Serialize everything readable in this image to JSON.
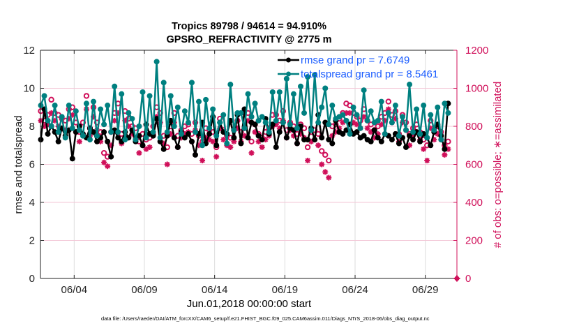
{
  "chart_data": {
    "type": "line",
    "title": "Tropics 89798 / 94614 = 94.910%",
    "subtitle": "GPSRO_REFRACTIVITY @ 2775 m",
    "xlabel": "Jun.01,2018 00:00:00 start",
    "ylabel": "rmse and totalspread",
    "ylabel_right": "# of obs: o=possible; ∗=assimilated",
    "footer": "data file: /Users/raeder/DAI/ATM_forcXX/CAM6_setup/f.e21.FHIST_BGC.f09_025.CAM6assim.011/Diags_NTrS_2018-06/obs_diag_output.nc",
    "x_tick_labels": [
      "06/04",
      "06/09",
      "06/14",
      "06/19",
      "06/24",
      "06/29"
    ],
    "x_tick_days": [
      4,
      9,
      14,
      19,
      24,
      29
    ],
    "xlim_days": [
      1.6,
      31.25
    ],
    "x_start_day": 1.625,
    "x_step_days": 0.25,
    "ylim": [
      0,
      12
    ],
    "y_ticks": [
      0,
      2,
      4,
      6,
      8,
      10,
      12
    ],
    "ylim_right": [
      0,
      1200
    ],
    "y_ticks_right": [
      0,
      200,
      400,
      600,
      800,
      1000,
      1200
    ],
    "grid": true,
    "legend": "top-right",
    "colors": {
      "rmse": "#000000",
      "totalspread": "#008080",
      "obs": "#d0105a",
      "legend_text": "#1a5cff",
      "right_axis": "#d0105a",
      "grid": "#dcdcdc",
      "grid_right": "#f3c6d6"
    },
    "series": [
      {
        "name": "rmse grand pr = 7.6749",
        "axis": "left",
        "values": [
          7.3,
          8.9,
          7.6,
          8.0,
          7.7,
          7.2,
          7.9,
          7.5,
          7.8,
          6.3,
          7.7,
          8.0,
          7.6,
          7.4,
          7.9,
          7.7,
          7.2,
          7.4,
          7.7,
          7.2,
          6.4,
          7.8,
          7.4,
          7.2,
          7.7,
          7.4,
          7.8,
          7.2,
          7.5,
          7.0,
          8.1,
          7.6,
          7.5,
          8.4,
          7.2,
          6.8,
          7.5,
          8.3,
          7.4,
          6.9,
          7.7,
          7.4,
          7.6,
          7.2,
          6.5,
          7.6,
          8.2,
          7.1,
          7.6,
          8.5,
          7.0,
          8.2,
          7.7,
          7.6,
          8.3,
          7.4,
          8.6,
          7.1,
          8.9,
          7.4,
          8.2,
          8.1,
          7.5,
          7.3,
          8.4,
          7.6,
          8.1,
          6.9,
          7.7,
          8.2,
          7.4,
          7.9,
          7.8,
          7.1,
          8.0,
          7.3,
          7.3,
          7.9,
          7.3,
          8.6,
          7.4,
          8.2,
          7.3,
          7.1,
          8.3,
          7.7,
          7.6,
          7.8,
          8.1,
          7.6,
          7.7,
          7.4,
          7.5,
          7.3,
          7.2,
          7.8,
          7.4,
          7.2,
          7.6,
          7.5,
          7.3,
          7.6,
          7.1,
          7.4,
          6.9,
          7.5,
          7.3,
          7.7,
          7.2,
          7.6,
          7.4,
          7.0,
          7.7,
          8.1,
          7.5,
          6.8,
          9.2
        ]
      },
      {
        "name": "totalspread grand pr = 8.5461",
        "axis": "left",
        "values": [
          9.1,
          9.6,
          8.3,
          8.0,
          9.1,
          7.7,
          8.5,
          7.4,
          9.1,
          7.9,
          8.8,
          7.8,
          7.5,
          9.2,
          7.3,
          9.3,
          7.5,
          8.9,
          8.1,
          9.1,
          7.7,
          10.1,
          7.7,
          9.7,
          7.3,
          8.7,
          8.4,
          7.3,
          8.0,
          9.8,
          7.4,
          9.6,
          7.7,
          11.4,
          7.4,
          10.3,
          7.7,
          9.6,
          8.0,
          9.0,
          7.6,
          8.8,
          8.2,
          10.3,
          7.7,
          9.3,
          7.0,
          9.4,
          7.9,
          8.9,
          7.5,
          8.2,
          8.6,
          7.1,
          10.2,
          7.8,
          8.7,
          8.7,
          7.9,
          9.7,
          8.5,
          9.2,
          8.3,
          8.5,
          8.2,
          7.7,
          9.8,
          8.3,
          9.8,
          8.2,
          10.5,
          8.1,
          9.7,
          7.9,
          10.1,
          8.7,
          10.6,
          7.8,
          10.7,
          8.2,
          9.0,
          10.0,
          8.1,
          9.1,
          8.4,
          8.5,
          8.6,
          8.3,
          7.6,
          9.0,
          8.6,
          7.9,
          9.9,
          8.3,
          8.8,
          8.2,
          8.3,
          9.3,
          7.6,
          8.7,
          8.2,
          9.1,
          7.5,
          8.5,
          7.8,
          10.2,
          7.7,
          8.9,
          7.6,
          9.1,
          7.4,
          8.6,
          7.8,
          9.0,
          7.3,
          9.2,
          8.7
        ]
      },
      {
        "name": "possible (o)",
        "axis": "right",
        "marker": "circle",
        "values": [
          880,
          830,
          860,
          940,
          870,
          860,
          840,
          830,
          890,
          900,
          820,
          770,
          820,
          960,
          790,
          900,
          820,
          770,
          660,
          640,
          770,
          870,
          920,
          760,
          880,
          840,
          800,
          790,
          720,
          760,
          730,
          740,
          800,
          900,
          870,
          750,
          690,
          800,
          870,
          750,
          780,
          800,
          810,
          760,
          820,
          750,
          720,
          790,
          780,
          770,
          690,
          840,
          780,
          750,
          740,
          780,
          830,
          770,
          790,
          870,
          720,
          810,
          760,
          740,
          770,
          790,
          860,
          860,
          830,
          880,
          780,
          820,
          800,
          760,
          810,
          790,
          690,
          770,
          780,
          760,
          670,
          650,
          620,
          800,
          810,
          840,
          870,
          920,
          910,
          870,
          850,
          830,
          890,
          830,
          810,
          780,
          800,
          850,
          870,
          930,
          860,
          880,
          760,
          860,
          820,
          760,
          790,
          810,
          770,
          730,
          700,
          830,
          780,
          800,
          770,
          700,
          720
        ]
      },
      {
        "name": "assimilated (∗)",
        "axis": "right",
        "marker": "asterisk",
        "values": [
          830,
          800,
          810,
          870,
          830,
          800,
          790,
          780,
          840,
          860,
          770,
          720,
          760,
          890,
          750,
          850,
          780,
          720,
          610,
          590,
          700,
          830,
          870,
          710,
          830,
          800,
          760,
          740,
          660,
          700,
          680,
          690,
          760,
          850,
          820,
          710,
          600,
          760,
          820,
          690,
          740,
          760,
          770,
          720,
          780,
          700,
          620,
          740,
          730,
          720,
          640,
          790,
          730,
          700,
          690,
          720,
          790,
          720,
          750,
          830,
          660,
          770,
          720,
          690,
          730,
          750,
          800,
          810,
          790,
          830,
          740,
          780,
          750,
          710,
          760,
          740,
          620,
          720,
          730,
          700,
          600,
          560,
          530,
          750,
          770,
          790,
          820,
          870,
          870,
          820,
          810,
          790,
          850,
          790,
          770,
          740,
          760,
          810,
          830,
          890,
          820,
          840,
          720,
          820,
          780,
          700,
          750,
          770,
          730,
          680,
          620,
          790,
          730,
          760,
          730,
          650,
          680
        ]
      }
    ]
  }
}
